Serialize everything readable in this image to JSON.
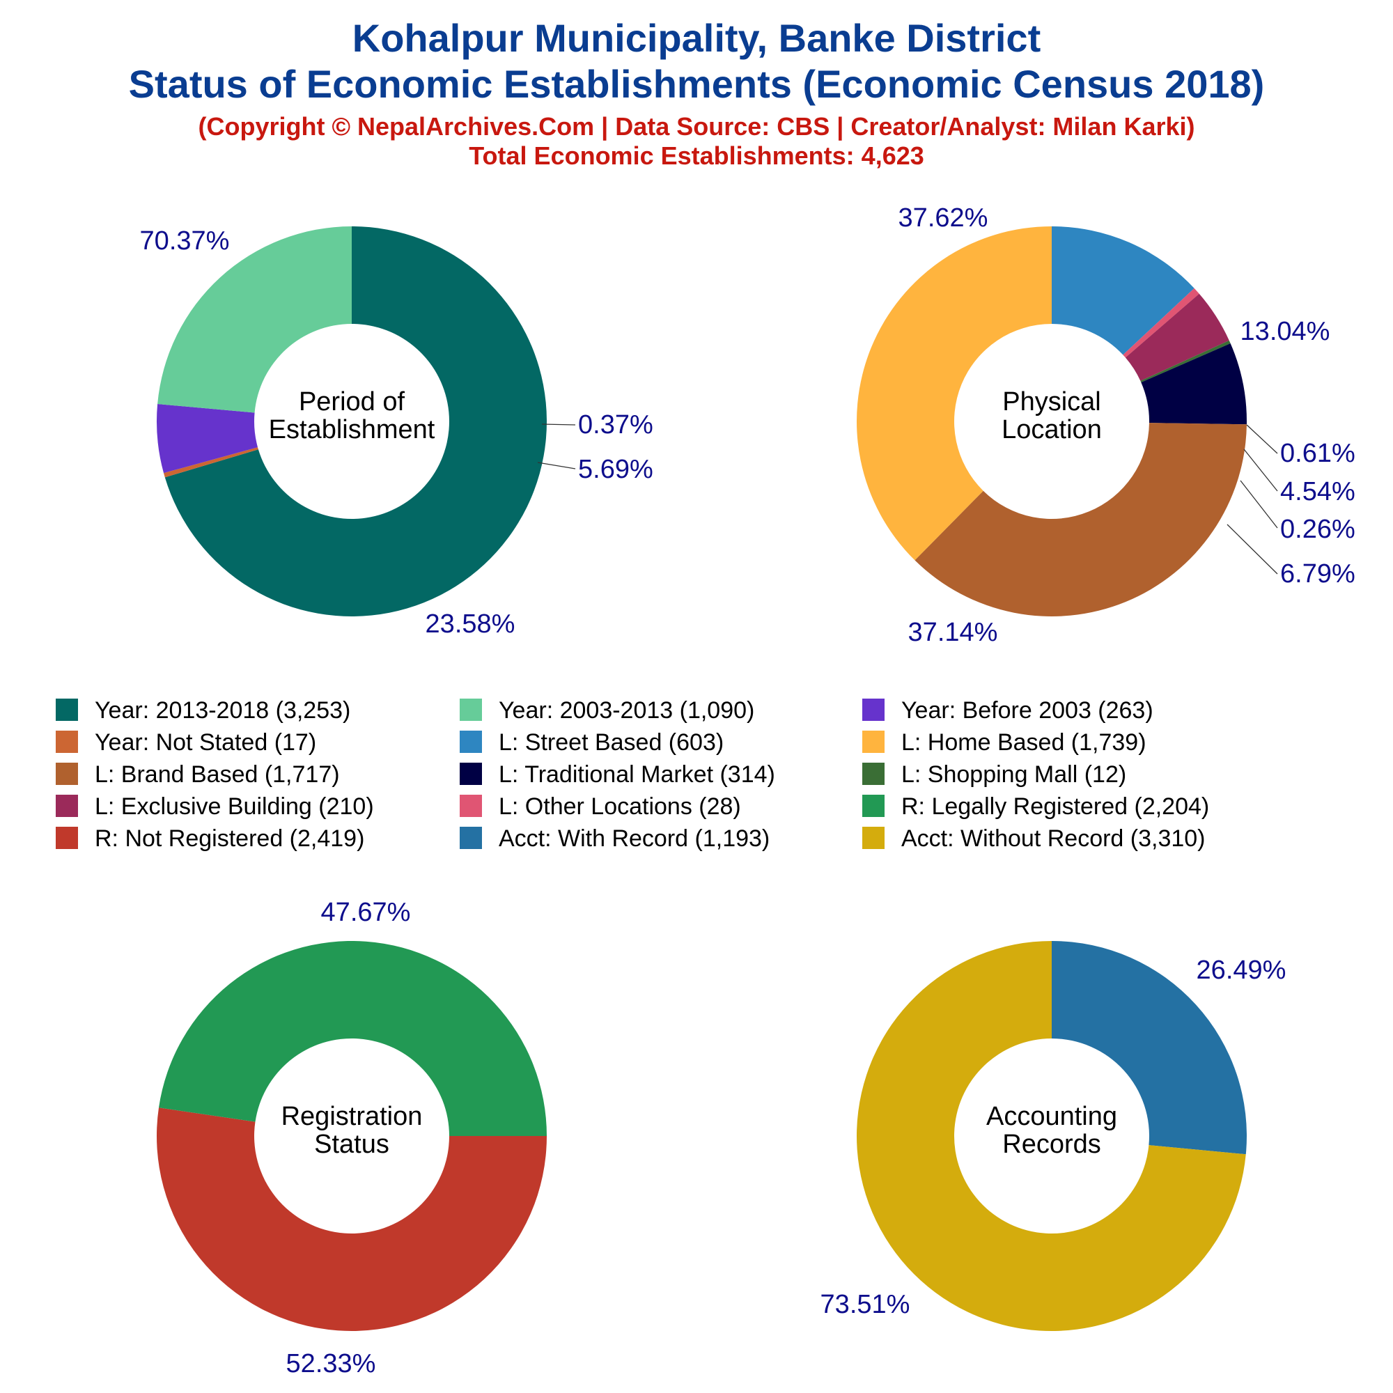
{
  "title_line1": "Kohalpur Municipality, Banke District",
  "title_line2": "Status of Economic Establishments (Economic Census 2018)",
  "subtitle_line1": "(Copyright © NepalArchives.Com | Data Source: CBS | Creator/Analyst: Milan Karki)",
  "subtitle_line2": "Total Economic Establishments: 4,623",
  "chart_data": [
    {
      "type": "pie",
      "center_label": [
        "Period of",
        "Establishment"
      ],
      "series": [
        {
          "name": "Year: 2013-2018 (3,253)",
          "value": 3253,
          "label": "70.37%",
          "color": "#036864"
        },
        {
          "name": "Year: Not Stated (17)",
          "value": 17,
          "label": "0.37%",
          "color": "#cc6633"
        },
        {
          "name": "Year: Before 2003 (263)",
          "value": 263,
          "label": "5.69%",
          "color": "#6633cc"
        },
        {
          "name": "Year: 2003-2013 (1,090)",
          "value": 1090,
          "label": "23.58%",
          "color": "#66cc99"
        }
      ]
    },
    {
      "type": "pie",
      "center_label": [
        "Physical",
        "Location"
      ],
      "series": [
        {
          "name": "L: Street Based (603)",
          "value": 603,
          "label": "13.04%",
          "color": "#2e86c1"
        },
        {
          "name": "L: Other Locations (28)",
          "value": 28,
          "label": "0.61%",
          "color": "#e05573"
        },
        {
          "name": "L: Exclusive Building (210)",
          "value": 210,
          "label": "4.54%",
          "color": "#9b2a5a"
        },
        {
          "name": "L: Shopping Mall (12)",
          "value": 12,
          "label": "0.26%",
          "color": "#3a6e35"
        },
        {
          "name": "L: Traditional Market (314)",
          "value": 314,
          "label": "6.79%",
          "color": "#000044"
        },
        {
          "name": "L: Brand Based (1,717)",
          "value": 1717,
          "label": "37.14%",
          "color": "#b0612e"
        },
        {
          "name": "L: Home Based (1,739)",
          "value": 1739,
          "label": "37.62%",
          "color": "#ffb43e"
        }
      ]
    },
    {
      "type": "pie",
      "center_label": [
        "Registration",
        "Status"
      ],
      "series": [
        {
          "name": "R: Not Registered (2,419)",
          "value": 2419,
          "label": "52.33%",
          "color": "#c0392b"
        },
        {
          "name": "R: Legally Registered (2,204)",
          "value": 2204,
          "label": "47.67%",
          "color": "#229954"
        }
      ]
    },
    {
      "type": "pie",
      "center_label": [
        "Accounting",
        "Records"
      ],
      "series": [
        {
          "name": "Acct: With Record (1,193)",
          "value": 1193,
          "label": "26.49%",
          "color": "#2471a3"
        },
        {
          "name": "Acct: Without Record (3,310)",
          "value": 3310,
          "label": "73.51%",
          "color": "#d4ac0d"
        }
      ]
    }
  ],
  "legend": [
    {
      "label": "Year: 2013-2018 (3,253)",
      "color": "#036864"
    },
    {
      "label": "Year: 2003-2013 (1,090)",
      "color": "#66cc99"
    },
    {
      "label": "Year: Before 2003 (263)",
      "color": "#6633cc"
    },
    {
      "label": "Year: Not Stated (17)",
      "color": "#cc6633"
    },
    {
      "label": "L: Street Based (603)",
      "color": "#2e86c1"
    },
    {
      "label": "L: Home Based (1,739)",
      "color": "#ffb43e"
    },
    {
      "label": "L: Brand Based (1,717)",
      "color": "#b0612e"
    },
    {
      "label": "L: Traditional Market (314)",
      "color": "#000044"
    },
    {
      "label": "L: Shopping Mall (12)",
      "color": "#3a6e35"
    },
    {
      "label": "L: Exclusive Building (210)",
      "color": "#9b2a5a"
    },
    {
      "label": "L: Other Locations (28)",
      "color": "#e05573"
    },
    {
      "label": "R: Legally Registered (2,204)",
      "color": "#229954"
    },
    {
      "label": "R: Not Registered (2,419)",
      "color": "#c0392b"
    },
    {
      "label": "Acct: With Record (1,193)",
      "color": "#2471a3"
    },
    {
      "label": "Acct: Without Record (3,310)",
      "color": "#d4ac0d"
    }
  ]
}
